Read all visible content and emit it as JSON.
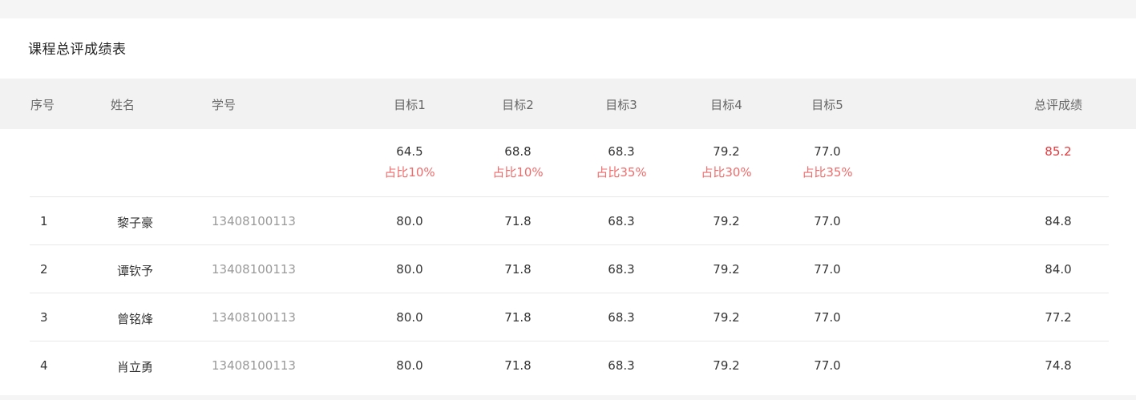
{
  "title": "课程总评成绩表",
  "headers": {
    "index": "序号",
    "name": "姓名",
    "student_id": "学号",
    "goal1": "目标1",
    "goal2": "目标2",
    "goal3": "目标3",
    "goal4": "目标4",
    "goal5": "目标5",
    "total": "总评成绩"
  },
  "averages": {
    "goal1": "64.5",
    "goal1_pct": "占比10%",
    "goal2": "68.8",
    "goal2_pct": "占比10%",
    "goal3": "68.3",
    "goal3_pct": "占比35%",
    "goal4": "79.2",
    "goal4_pct": "占比30%",
    "goal5": "77.0",
    "goal5_pct": "占比35%",
    "total": "85.2"
  },
  "rows": [
    {
      "index": "1",
      "name": "黎子豪",
      "student_id": "13408100113",
      "goal1": "80.0",
      "goal2": "71.8",
      "goal3": "68.3",
      "goal4": "79.2",
      "goal5": "77.0",
      "total": "84.8"
    },
    {
      "index": "2",
      "name": "谭钦予",
      "student_id": "13408100113",
      "goal1": "80.0",
      "goal2": "71.8",
      "goal3": "68.3",
      "goal4": "79.2",
      "goal5": "77.0",
      "total": "84.0"
    },
    {
      "index": "3",
      "name": "曾铭烽",
      "student_id": "13408100113",
      "goal1": "80.0",
      "goal2": "71.8",
      "goal3": "68.3",
      "goal4": "79.2",
      "goal5": "77.0",
      "total": "77.2"
    },
    {
      "index": "4",
      "name": "肖立勇",
      "student_id": "13408100113",
      "goal1": "80.0",
      "goal2": "71.8",
      "goal3": "68.3",
      "goal4": "79.2",
      "goal5": "77.0",
      "total": "74.8"
    }
  ],
  "colors": {
    "page_bg": "#f5f5f5",
    "header_bg": "#f2f2f2",
    "total_red": "#e4393c",
    "pct_red": "#f06a6a",
    "student_id_gray": "#999999"
  }
}
